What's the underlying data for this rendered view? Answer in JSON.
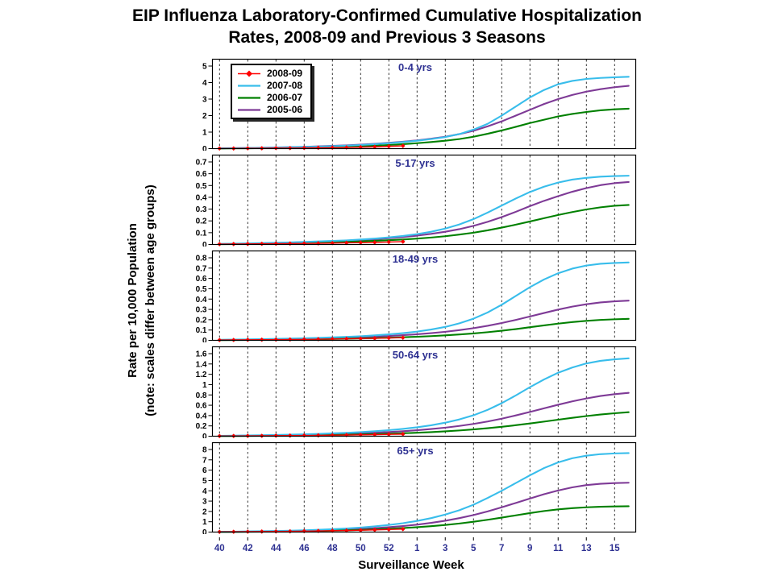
{
  "title": {
    "line1": "EIP Influenza Laboratory-Confirmed Cumulative Hospitalization",
    "line2": "Rates, 2008-09 and Previous 3 Seasons"
  },
  "y_axis_label": {
    "line1": "Rate per 10,000 Population",
    "line2": "(note: scales differ between age groups)"
  },
  "x_axis_label": "Surveillance Week",
  "colors": {
    "series": {
      "2008-09": "#FF0000",
      "2007-08": "#38BDEB",
      "2006-07": "#008000",
      "2005-06": "#7E3A96"
    },
    "panel_title": "#2E3192",
    "x_tick_label": "#2E3192",
    "y_tick_label": "#000000",
    "gridline": "#000000"
  },
  "legend": {
    "items": [
      {
        "label": "2008-09"
      },
      {
        "label": "2007-08"
      },
      {
        "label": "2006-07"
      },
      {
        "label": "2005-06"
      }
    ]
  },
  "chart_data": {
    "type": "line",
    "title": "EIP Influenza Laboratory-Confirmed Cumulative Hospitalization Rates, 2008-09 and Previous 3 Seasons",
    "xlabel": "Surveillance Week",
    "ylabel": "Rate per 10,000 Population (note: scales differ between age groups)",
    "legend_position": "top-left of first panel",
    "grid": "vertical dashed at every other week",
    "marker_series": "2008-09",
    "x_categories": [
      40,
      41,
      42,
      43,
      44,
      45,
      46,
      47,
      48,
      49,
      50,
      51,
      52,
      53,
      1,
      2,
      3,
      4,
      5,
      6,
      7,
      8,
      9,
      10,
      11,
      12,
      13,
      14,
      15,
      16
    ],
    "x_tick_indices": [
      0,
      2,
      4,
      6,
      8,
      10,
      12,
      14,
      16,
      18,
      20,
      22,
      24,
      26,
      28
    ],
    "x_tick_labels": [
      "40",
      "42",
      "44",
      "46",
      "48",
      "50",
      "52",
      "1",
      "3",
      "5",
      "7",
      "9",
      "11",
      "13",
      "15"
    ],
    "panels": [
      {
        "title": "0-4 yrs",
        "ylim": [
          0,
          5
        ],
        "yticks": [
          0,
          1,
          2,
          3,
          4,
          5
        ],
        "series": [
          {
            "name": "2008-09",
            "values": [
              0.01,
              0.01,
              0.02,
              0.02,
              0.03,
              0.03,
              0.04,
              0.05,
              0.06,
              0.07,
              0.09,
              0.11,
              0.14,
              0.17
            ]
          },
          {
            "name": "2007-08",
            "values": [
              0.02,
              0.03,
              0.04,
              0.05,
              0.06,
              0.08,
              0.1,
              0.12,
              0.15,
              0.18,
              0.22,
              0.27,
              0.33,
              0.4,
              0.48,
              0.58,
              0.7,
              0.88,
              1.15,
              1.5,
              2.0,
              2.55,
              3.1,
              3.55,
              3.9,
              4.1,
              4.22,
              4.28,
              4.32,
              4.35
            ]
          },
          {
            "name": "2006-07",
            "values": [
              0.01,
              0.02,
              0.02,
              0.03,
              0.04,
              0.05,
              0.06,
              0.08,
              0.1,
              0.12,
              0.15,
              0.18,
              0.22,
              0.27,
              0.33,
              0.4,
              0.48,
              0.58,
              0.72,
              0.9,
              1.1,
              1.32,
              1.55,
              1.75,
              1.95,
              2.1,
              2.22,
              2.32,
              2.38,
              2.42
            ]
          },
          {
            "name": "2005-06",
            "values": [
              0.02,
              0.03,
              0.04,
              0.05,
              0.07,
              0.09,
              0.11,
              0.14,
              0.17,
              0.2,
              0.24,
              0.29,
              0.35,
              0.42,
              0.5,
              0.6,
              0.72,
              0.88,
              1.08,
              1.35,
              1.65,
              2.0,
              2.35,
              2.7,
              3.0,
              3.25,
              3.45,
              3.6,
              3.72,
              3.8
            ]
          }
        ]
      },
      {
        "title": "5-17 yrs",
        "ylim": [
          0,
          0.7
        ],
        "yticks": [
          0,
          0.1,
          0.2,
          0.3,
          0.4,
          0.5,
          0.6,
          0.7
        ],
        "series": [
          {
            "name": "2008-09",
            "values": [
              0.003,
              0.004,
              0.005,
              0.006,
              0.007,
              0.008,
              0.009,
              0.01,
              0.012,
              0.014,
              0.016,
              0.018,
              0.021,
              0.024
            ]
          },
          {
            "name": "2007-08",
            "values": [
              0.005,
              0.007,
              0.009,
              0.012,
              0.015,
              0.018,
              0.022,
              0.026,
              0.03,
              0.035,
              0.042,
              0.05,
              0.06,
              0.072,
              0.088,
              0.108,
              0.135,
              0.17,
              0.215,
              0.27,
              0.33,
              0.39,
              0.445,
              0.49,
              0.525,
              0.55,
              0.565,
              0.575,
              0.58,
              0.583
            ]
          },
          {
            "name": "2006-07",
            "values": [
              0.003,
              0.004,
              0.006,
              0.007,
              0.009,
              0.011,
              0.013,
              0.016,
              0.019,
              0.022,
              0.026,
              0.031,
              0.036,
              0.042,
              0.05,
              0.059,
              0.07,
              0.084,
              0.1,
              0.12,
              0.143,
              0.168,
              0.195,
              0.223,
              0.25,
              0.275,
              0.297,
              0.315,
              0.328,
              0.335
            ]
          },
          {
            "name": "2005-06",
            "values": [
              0.004,
              0.006,
              0.008,
              0.01,
              0.013,
              0.016,
              0.019,
              0.023,
              0.027,
              0.032,
              0.038,
              0.045,
              0.053,
              0.063,
              0.075,
              0.09,
              0.108,
              0.13,
              0.158,
              0.192,
              0.232,
              0.277,
              0.325,
              0.37,
              0.41,
              0.447,
              0.478,
              0.503,
              0.52,
              0.53
            ]
          }
        ]
      },
      {
        "title": "18-49 yrs",
        "ylim": [
          0,
          0.8
        ],
        "yticks": [
          0,
          0.1,
          0.2,
          0.3,
          0.4,
          0.5,
          0.6,
          0.7,
          0.8
        ],
        "series": [
          {
            "name": "2008-09",
            "values": [
              0.003,
              0.004,
              0.005,
              0.006,
              0.007,
              0.008,
              0.009,
              0.011,
              0.013,
              0.015,
              0.017,
              0.02,
              0.023,
              0.026
            ]
          },
          {
            "name": "2007-08",
            "values": [
              0.005,
              0.007,
              0.009,
              0.011,
              0.014,
              0.017,
              0.02,
              0.024,
              0.029,
              0.034,
              0.04,
              0.048,
              0.058,
              0.07,
              0.085,
              0.105,
              0.13,
              0.165,
              0.21,
              0.27,
              0.345,
              0.43,
              0.515,
              0.59,
              0.65,
              0.695,
              0.725,
              0.742,
              0.75,
              0.755
            ]
          },
          {
            "name": "2006-07",
            "values": [
              0.002,
              0.003,
              0.004,
              0.005,
              0.006,
              0.008,
              0.009,
              0.011,
              0.013,
              0.016,
              0.019,
              0.022,
              0.026,
              0.03,
              0.035,
              0.041,
              0.048,
              0.057,
              0.067,
              0.079,
              0.093,
              0.109,
              0.127,
              0.145,
              0.162,
              0.177,
              0.189,
              0.198,
              0.204,
              0.208
            ]
          },
          {
            "name": "2005-06",
            "values": [
              0.004,
              0.005,
              0.007,
              0.009,
              0.011,
              0.013,
              0.016,
              0.019,
              0.022,
              0.026,
              0.031,
              0.036,
              0.042,
              0.05,
              0.059,
              0.07,
              0.083,
              0.099,
              0.118,
              0.141,
              0.168,
              0.198,
              0.231,
              0.265,
              0.298,
              0.327,
              0.35,
              0.367,
              0.378,
              0.385
            ]
          }
        ]
      },
      {
        "title": "50-64 yrs",
        "ylim": [
          0,
          1.6
        ],
        "yticks": [
          0,
          0.2,
          0.4,
          0.6,
          0.8,
          1,
          1.2,
          1.4,
          1.6
        ],
        "series": [
          {
            "name": "2008-09",
            "values": [
              0.004,
              0.005,
              0.007,
              0.008,
              0.01,
              0.012,
              0.014,
              0.017,
              0.02,
              0.023,
              0.027,
              0.031,
              0.036,
              0.041
            ]
          },
          {
            "name": "2007-08",
            "values": [
              0.008,
              0.011,
              0.015,
              0.019,
              0.024,
              0.03,
              0.037,
              0.045,
              0.055,
              0.066,
              0.08,
              0.097,
              0.117,
              0.142,
              0.173,
              0.212,
              0.262,
              0.325,
              0.405,
              0.51,
              0.64,
              0.79,
              0.95,
              1.1,
              1.23,
              1.33,
              1.41,
              1.46,
              1.49,
              1.51
            ]
          },
          {
            "name": "2006-07",
            "values": [
              0.004,
              0.005,
              0.007,
              0.009,
              0.011,
              0.014,
              0.017,
              0.02,
              0.024,
              0.029,
              0.034,
              0.04,
              0.048,
              0.057,
              0.067,
              0.079,
              0.094,
              0.111,
              0.131,
              0.155,
              0.182,
              0.213,
              0.247,
              0.283,
              0.32,
              0.356,
              0.39,
              0.42,
              0.445,
              0.465
            ]
          },
          {
            "name": "2005-06",
            "values": [
              0.006,
              0.008,
              0.011,
              0.014,
              0.018,
              0.022,
              0.027,
              0.033,
              0.04,
              0.048,
              0.057,
              0.068,
              0.081,
              0.097,
              0.116,
              0.139,
              0.166,
              0.199,
              0.238,
              0.285,
              0.34,
              0.403,
              0.47,
              0.54,
              0.61,
              0.675,
              0.732,
              0.78,
              0.815,
              0.84
            ]
          }
        ]
      },
      {
        "title": "65+ yrs",
        "ylim": [
          0,
          8
        ],
        "yticks": [
          0,
          1,
          2,
          3,
          4,
          5,
          6,
          7,
          8
        ],
        "series": [
          {
            "name": "2008-09",
            "values": [
              0.02,
              0.03,
              0.04,
              0.05,
              0.06,
              0.07,
              0.09,
              0.11,
              0.13,
              0.15,
              0.18,
              0.21,
              0.25,
              0.29
            ]
          },
          {
            "name": "2007-08",
            "values": [
              0.03,
              0.04,
              0.06,
              0.08,
              0.1,
              0.13,
              0.17,
              0.22,
              0.28,
              0.35,
              0.44,
              0.55,
              0.69,
              0.86,
              1.08,
              1.35,
              1.7,
              2.12,
              2.65,
              3.3,
              4.0,
              4.75,
              5.5,
              6.2,
              6.75,
              7.15,
              7.4,
              7.55,
              7.62,
              7.65
            ]
          },
          {
            "name": "2006-07",
            "values": [
              0.01,
              0.02,
              0.03,
              0.04,
              0.05,
              0.07,
              0.09,
              0.11,
              0.14,
              0.17,
              0.21,
              0.26,
              0.32,
              0.39,
              0.47,
              0.57,
              0.69,
              0.83,
              1.0,
              1.19,
              1.4,
              1.62,
              1.84,
              2.04,
              2.2,
              2.32,
              2.4,
              2.45,
              2.48,
              2.5
            ]
          },
          {
            "name": "2005-06",
            "values": [
              0.02,
              0.03,
              0.04,
              0.06,
              0.08,
              0.1,
              0.13,
              0.16,
              0.2,
              0.25,
              0.31,
              0.38,
              0.47,
              0.58,
              0.72,
              0.89,
              1.1,
              1.35,
              1.65,
              2.0,
              2.4,
              2.82,
              3.25,
              3.67,
              4.03,
              4.33,
              4.55,
              4.68,
              4.75,
              4.78
            ]
          }
        ]
      }
    ]
  }
}
